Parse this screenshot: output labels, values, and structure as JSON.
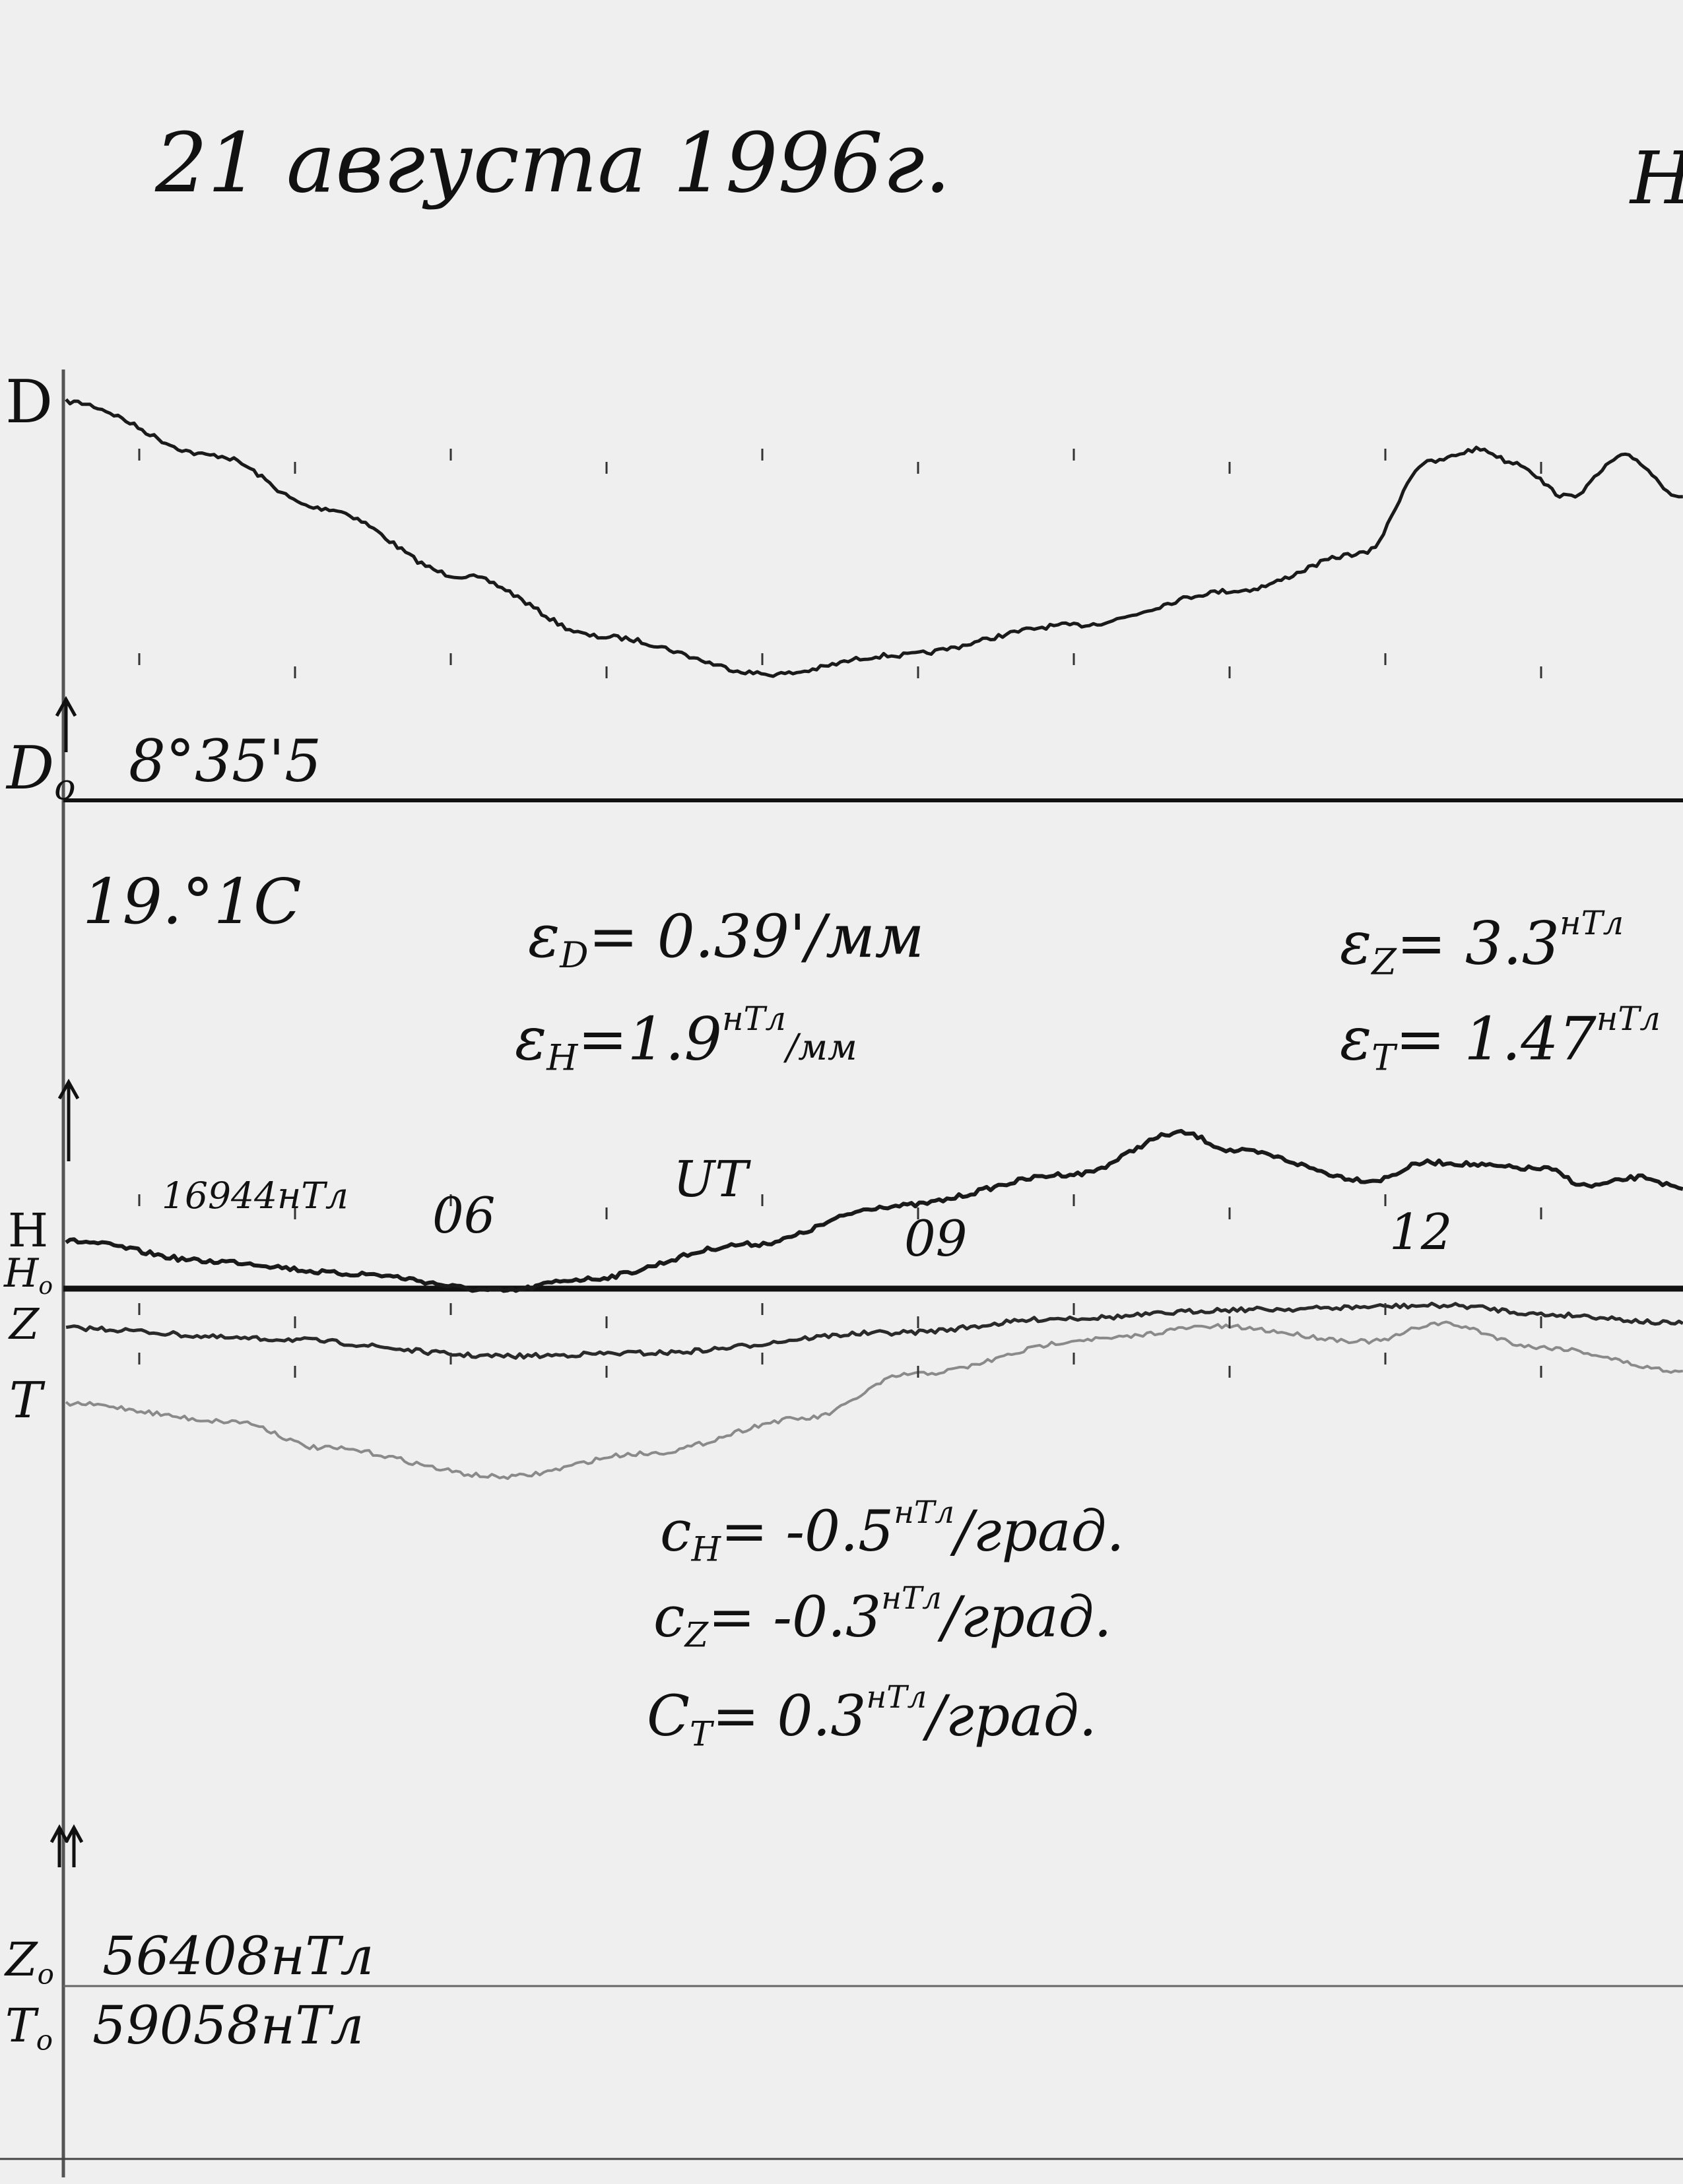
{
  "header": {
    "date": "21 августа 1996г.",
    "corner_letter": "Н"
  },
  "labels": {
    "D": "D",
    "D0": "D",
    "D0_sub": "o",
    "D0_value": "8°35'5",
    "temperature": "19.°1C",
    "H": "H",
    "H0": "H",
    "H0_sub": "o",
    "Z": "Z",
    "T": "T",
    "H0_value": "16944нТл",
    "ut": "UT",
    "hour_06": "06",
    "hour_09": "09",
    "hour_12": "12",
    "Z0": "Z",
    "Z0_sub": "o",
    "Z0_value": "56408нТл",
    "T0": "T",
    "T0_sub": "o",
    "T0_value": "59058нТл"
  },
  "scales": {
    "eD": {
      "sym": "ε",
      "sub": "D",
      "value": "= 0.39'/мм"
    },
    "eH": {
      "sym": "ε",
      "sub": "H",
      "value": "=1.9",
      "unit": "нТл",
      "per": "/мм"
    },
    "eZ": {
      "sym": "ε",
      "sub": "Z",
      "value": "= 3.3",
      "unit": "нТл"
    },
    "eT": {
      "sym": "ε",
      "sub": "T",
      "value": "= 1.47",
      "unit": "нТл"
    }
  },
  "coefficients": {
    "cH": {
      "sym": "c",
      "sub": "H",
      "value": "= -0.5",
      "unit": "нТл",
      "per": "/град."
    },
    "cZ": {
      "sym": "c",
      "sub": "Z",
      "value": "= -0.3",
      "unit": "нТл",
      "per": "/град."
    },
    "cT": {
      "sym": "C",
      "sub": "T",
      "value": "= 0.3",
      "unit": "нТл",
      "per": "/град."
    }
  },
  "chart_data": {
    "type": "line",
    "xlabel": "UT",
    "x_ticks": [
      "06",
      "09",
      "12"
    ],
    "xlim": [
      3.5,
      13.9
    ],
    "y_unit": "мм",
    "grid": false,
    "colors": {
      "D": "#1a1a1a",
      "H": "#1a1a1a",
      "Z": "#2a2a2a",
      "T": "#8a8a8a",
      "baseline": "#111111"
    },
    "series": [
      {
        "name": "D",
        "x": [
          3.53,
          4.48,
          5.17,
          6.07,
          6.97,
          8.07,
          8.83,
          10.0,
          11.03,
          11.86,
          12.27,
          12.61,
          12.82,
          13.17,
          13.54,
          13.91
        ],
        "y": [
          51.2,
          44.3,
          37.5,
          28.8,
          21.0,
          16.2,
          18.6,
          22.5,
          26.9,
          31.7,
          43.4,
          45.1,
          43.4,
          39.0,
          44.2,
          39.0
        ]
      },
      {
        "name": "H",
        "x": [
          3.53,
          4.48,
          5.38,
          6.34,
          6.83,
          7.93,
          8.83,
          10.0,
          10.69,
          11.03,
          11.92,
          12.27,
          13.02,
          13.3,
          13.65,
          13.91
        ],
        "y": [
          6.1,
          3.5,
          1.9,
          -0.3,
          1.2,
          5.7,
          10.6,
          14.7,
          20.0,
          17.7,
          13.9,
          16.2,
          15.4,
          13.2,
          14.3,
          12.8
        ]
      },
      {
        "name": "Z",
        "x": [
          3.53,
          4.83,
          6.34,
          7.24,
          8.83,
          10.0,
          11.1,
          12.4,
          13.1,
          13.91
        ],
        "y": [
          84.5,
          83.1,
          80.9,
          81.3,
          83.9,
          85.8,
          86.9,
          87.4,
          86.2,
          85.1
        ]
      },
      {
        "name": "T",
        "x": [
          3.53,
          4.62,
          5.17,
          6.34,
          7.24,
          8.28,
          8.96,
          10.14,
          10.9,
          11.92,
          12.34,
          13.02,
          13.91
        ],
        "y": [
          74.8,
          72.5,
          69.1,
          65.4,
          68.4,
          72.9,
          78.6,
          83.1,
          84.7,
          82.8,
          85.1,
          82.0,
          79.0
        ]
      }
    ]
  }
}
